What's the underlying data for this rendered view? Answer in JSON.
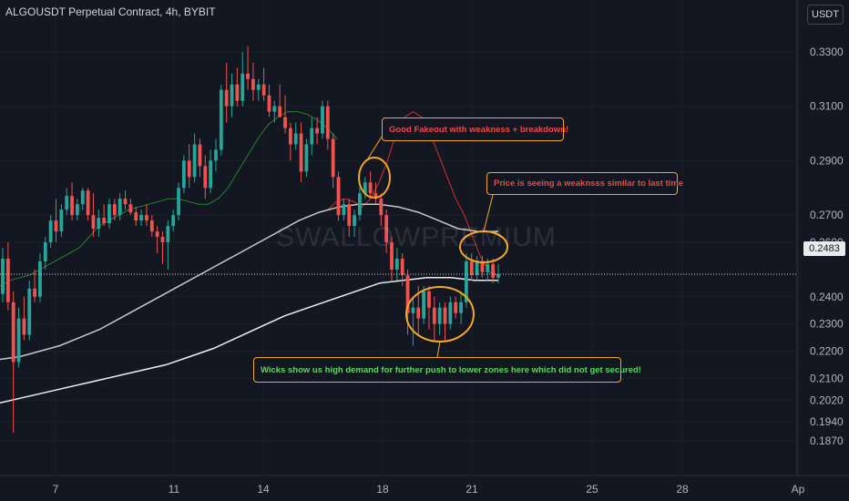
{
  "header": {
    "title": "ALGOUSDT Perpetual Contract, 4h, BYBIT",
    "currency_button": "USDT"
  },
  "watermark": "SWALLOWPREMIUM",
  "last_price_label": "0.2483",
  "annotations": {
    "fakeout": "Good Fakeout with weakness + breakdown!",
    "weakness": "Price is seeing a weaknsss similar to last time",
    "wicks": "Wicks show us high demand for further push to lower zones here which did not get secured!"
  },
  "colors": {
    "background": "#131722",
    "bull": "#26a69a",
    "bear": "#ef5350",
    "annotation_border": "#f5a623",
    "ma_short": "#d32f2f",
    "ma_green": "#2e7d32"
  },
  "chart_data": {
    "type": "candlestick",
    "symbol": "ALGOUSDT",
    "interval": "4h",
    "exchange": "BYBIT",
    "ylim": [
      0.18,
      0.339
    ],
    "y_ticks": [
      "0.3300",
      "0.3100",
      "0.2900",
      "0.2700",
      "0.2600",
      "0.2400",
      "0.2300",
      "0.2200",
      "0.2100",
      "0.2020",
      "0.1940",
      "0.1870"
    ],
    "x_ticks": [
      "7",
      "11",
      "14",
      "18",
      "21",
      "25",
      "28",
      "Ap"
    ],
    "last_price": 0.2483,
    "candles": [
      {
        "o": 0.241,
        "h": 0.258,
        "l": 0.238,
        "c": 0.254
      },
      {
        "o": 0.254,
        "h": 0.26,
        "l": 0.235,
        "c": 0.238
      },
      {
        "o": 0.238,
        "h": 0.242,
        "l": 0.19,
        "c": 0.216
      },
      {
        "o": 0.216,
        "h": 0.236,
        "l": 0.214,
        "c": 0.232
      },
      {
        "o": 0.232,
        "h": 0.24,
        "l": 0.224,
        "c": 0.226
      },
      {
        "o": 0.226,
        "h": 0.246,
        "l": 0.224,
        "c": 0.243
      },
      {
        "o": 0.243,
        "h": 0.25,
        "l": 0.238,
        "c": 0.24
      },
      {
        "o": 0.24,
        "h": 0.256,
        "l": 0.238,
        "c": 0.253
      },
      {
        "o": 0.253,
        "h": 0.262,
        "l": 0.25,
        "c": 0.26
      },
      {
        "o": 0.26,
        "h": 0.27,
        "l": 0.258,
        "c": 0.268
      },
      {
        "o": 0.268,
        "h": 0.276,
        "l": 0.26,
        "c": 0.264
      },
      {
        "o": 0.264,
        "h": 0.274,
        "l": 0.262,
        "c": 0.272
      },
      {
        "o": 0.272,
        "h": 0.28,
        "l": 0.27,
        "c": 0.277
      },
      {
        "o": 0.277,
        "h": 0.282,
        "l": 0.268,
        "c": 0.27
      },
      {
        "o": 0.27,
        "h": 0.276,
        "l": 0.268,
        "c": 0.274
      },
      {
        "o": 0.274,
        "h": 0.28,
        "l": 0.272,
        "c": 0.279
      },
      {
        "o": 0.279,
        "h": 0.28,
        "l": 0.268,
        "c": 0.27
      },
      {
        "o": 0.27,
        "h": 0.278,
        "l": 0.262,
        "c": 0.265
      },
      {
        "o": 0.265,
        "h": 0.272,
        "l": 0.262,
        "c": 0.269
      },
      {
        "o": 0.269,
        "h": 0.274,
        "l": 0.266,
        "c": 0.267
      },
      {
        "o": 0.267,
        "h": 0.276,
        "l": 0.265,
        "c": 0.274
      },
      {
        "o": 0.274,
        "h": 0.276,
        "l": 0.268,
        "c": 0.27
      },
      {
        "o": 0.27,
        "h": 0.278,
        "l": 0.268,
        "c": 0.276
      },
      {
        "o": 0.276,
        "h": 0.279,
        "l": 0.272,
        "c": 0.274
      },
      {
        "o": 0.274,
        "h": 0.276,
        "l": 0.27,
        "c": 0.271
      },
      {
        "o": 0.271,
        "h": 0.273,
        "l": 0.266,
        "c": 0.268
      },
      {
        "o": 0.268,
        "h": 0.272,
        "l": 0.266,
        "c": 0.27
      },
      {
        "o": 0.27,
        "h": 0.274,
        "l": 0.266,
        "c": 0.268
      },
      {
        "o": 0.268,
        "h": 0.27,
        "l": 0.262,
        "c": 0.264
      },
      {
        "o": 0.264,
        "h": 0.266,
        "l": 0.256,
        "c": 0.262
      },
      {
        "o": 0.262,
        "h": 0.264,
        "l": 0.252,
        "c": 0.26
      },
      {
        "o": 0.26,
        "h": 0.268,
        "l": 0.25,
        "c": 0.266
      },
      {
        "o": 0.266,
        "h": 0.272,
        "l": 0.264,
        "c": 0.27
      },
      {
        "o": 0.27,
        "h": 0.282,
        "l": 0.268,
        "c": 0.28
      },
      {
        "o": 0.28,
        "h": 0.292,
        "l": 0.278,
        "c": 0.29
      },
      {
        "o": 0.29,
        "h": 0.296,
        "l": 0.28,
        "c": 0.284
      },
      {
        "o": 0.284,
        "h": 0.3,
        "l": 0.282,
        "c": 0.296
      },
      {
        "o": 0.296,
        "h": 0.298,
        "l": 0.284,
        "c": 0.288
      },
      {
        "o": 0.288,
        "h": 0.292,
        "l": 0.276,
        "c": 0.28
      },
      {
        "o": 0.28,
        "h": 0.294,
        "l": 0.278,
        "c": 0.29
      },
      {
        "o": 0.29,
        "h": 0.298,
        "l": 0.286,
        "c": 0.294
      },
      {
        "o": 0.294,
        "h": 0.318,
        "l": 0.292,
        "c": 0.316
      },
      {
        "o": 0.316,
        "h": 0.326,
        "l": 0.304,
        "c": 0.31
      },
      {
        "o": 0.31,
        "h": 0.322,
        "l": 0.306,
        "c": 0.318
      },
      {
        "o": 0.318,
        "h": 0.324,
        "l": 0.31,
        "c": 0.312
      },
      {
        "o": 0.312,
        "h": 0.33,
        "l": 0.31,
        "c": 0.322
      },
      {
        "o": 0.322,
        "h": 0.332,
        "l": 0.316,
        "c": 0.32
      },
      {
        "o": 0.32,
        "h": 0.326,
        "l": 0.312,
        "c": 0.316
      },
      {
        "o": 0.316,
        "h": 0.32,
        "l": 0.312,
        "c": 0.318
      },
      {
        "o": 0.318,
        "h": 0.324,
        "l": 0.312,
        "c": 0.314
      },
      {
        "o": 0.314,
        "h": 0.318,
        "l": 0.306,
        "c": 0.308
      },
      {
        "o": 0.308,
        "h": 0.312,
        "l": 0.304,
        "c": 0.31
      },
      {
        "o": 0.31,
        "h": 0.318,
        "l": 0.306,
        "c": 0.306
      },
      {
        "o": 0.306,
        "h": 0.314,
        "l": 0.3,
        "c": 0.302
      },
      {
        "o": 0.302,
        "h": 0.304,
        "l": 0.29,
        "c": 0.296
      },
      {
        "o": 0.296,
        "h": 0.304,
        "l": 0.294,
        "c": 0.3
      },
      {
        "o": 0.3,
        "h": 0.304,
        "l": 0.282,
        "c": 0.286
      },
      {
        "o": 0.286,
        "h": 0.298,
        "l": 0.284,
        "c": 0.296
      },
      {
        "o": 0.296,
        "h": 0.306,
        "l": 0.292,
        "c": 0.302
      },
      {
        "o": 0.302,
        "h": 0.306,
        "l": 0.296,
        "c": 0.3
      },
      {
        "o": 0.3,
        "h": 0.312,
        "l": 0.298,
        "c": 0.31
      },
      {
        "o": 0.31,
        "h": 0.312,
        "l": 0.294,
        "c": 0.298
      },
      {
        "o": 0.298,
        "h": 0.3,
        "l": 0.28,
        "c": 0.284
      },
      {
        "o": 0.284,
        "h": 0.286,
        "l": 0.268,
        "c": 0.27
      },
      {
        "o": 0.27,
        "h": 0.276,
        "l": 0.268,
        "c": 0.274
      },
      {
        "o": 0.274,
        "h": 0.276,
        "l": 0.262,
        "c": 0.266
      },
      {
        "o": 0.266,
        "h": 0.272,
        "l": 0.262,
        "c": 0.27
      },
      {
        "o": 0.27,
        "h": 0.28,
        "l": 0.268,
        "c": 0.278
      },
      {
        "o": 0.278,
        "h": 0.284,
        "l": 0.276,
        "c": 0.282
      },
      {
        "o": 0.282,
        "h": 0.286,
        "l": 0.276,
        "c": 0.278
      },
      {
        "o": 0.278,
        "h": 0.282,
        "l": 0.274,
        "c": 0.276
      },
      {
        "o": 0.276,
        "h": 0.278,
        "l": 0.266,
        "c": 0.27
      },
      {
        "o": 0.27,
        "h": 0.272,
        "l": 0.256,
        "c": 0.26
      },
      {
        "o": 0.26,
        "h": 0.262,
        "l": 0.246,
        "c": 0.25
      },
      {
        "o": 0.25,
        "h": 0.258,
        "l": 0.246,
        "c": 0.254
      },
      {
        "o": 0.254,
        "h": 0.256,
        "l": 0.244,
        "c": 0.248
      },
      {
        "o": 0.248,
        "h": 0.25,
        "l": 0.226,
        "c": 0.234
      },
      {
        "o": 0.234,
        "h": 0.24,
        "l": 0.222,
        "c": 0.236
      },
      {
        "o": 0.236,
        "h": 0.244,
        "l": 0.226,
        "c": 0.232
      },
      {
        "o": 0.232,
        "h": 0.244,
        "l": 0.23,
        "c": 0.242
      },
      {
        "o": 0.242,
        "h": 0.244,
        "l": 0.228,
        "c": 0.236
      },
      {
        "o": 0.236,
        "h": 0.24,
        "l": 0.224,
        "c": 0.23
      },
      {
        "o": 0.23,
        "h": 0.238,
        "l": 0.226,
        "c": 0.236
      },
      {
        "o": 0.236,
        "h": 0.238,
        "l": 0.224,
        "c": 0.23
      },
      {
        "o": 0.23,
        "h": 0.24,
        "l": 0.228,
        "c": 0.238
      },
      {
        "o": 0.238,
        "h": 0.24,
        "l": 0.232,
        "c": 0.234
      },
      {
        "o": 0.234,
        "h": 0.242,
        "l": 0.23,
        "c": 0.238
      },
      {
        "o": 0.238,
        "h": 0.256,
        "l": 0.236,
        "c": 0.253
      },
      {
        "o": 0.253,
        "h": 0.256,
        "l": 0.246,
        "c": 0.248
      },
      {
        "o": 0.248,
        "h": 0.255,
        "l": 0.246,
        "c": 0.253
      },
      {
        "o": 0.253,
        "h": 0.255,
        "l": 0.247,
        "c": 0.249
      },
      {
        "o": 0.249,
        "h": 0.254,
        "l": 0.246,
        "c": 0.252
      },
      {
        "o": 0.252,
        "h": 0.254,
        "l": 0.245,
        "c": 0.247
      },
      {
        "o": 0.247,
        "h": 0.252,
        "l": 0.245,
        "c": 0.2483
      }
    ],
    "moving_averages": [
      {
        "color": "#2e7d32",
        "values": [
          0.244,
          0.246,
          0.247,
          0.248,
          0.25,
          0.252,
          0.254,
          0.256,
          0.258,
          0.262,
          0.266,
          0.268,
          0.27,
          0.272,
          0.273,
          0.274,
          0.275,
          0.276,
          0.276,
          0.275,
          0.274,
          0.274,
          0.276,
          0.28,
          0.286,
          0.292,
          0.298,
          0.303,
          0.306,
          0.308,
          0.308,
          0.307,
          0.305,
          0.302,
          0.298
        ]
      },
      {
        "color": "#d32f2f",
        "values": [
          0.272,
          0.275,
          0.276,
          0.275,
          0.273,
          0.276,
          0.282,
          0.29,
          0.3,
          0.306,
          0.308,
          0.306,
          0.3,
          0.292,
          0.284,
          0.276,
          0.27,
          0.262,
          0.254,
          0.249,
          0.248
        ]
      },
      {
        "color": "#c8c8c8",
        "values": [
          0.217,
          0.218,
          0.22,
          0.222,
          0.225,
          0.228,
          0.232,
          0.236,
          0.24,
          0.244,
          0.248,
          0.252,
          0.256,
          0.26,
          0.264,
          0.268,
          0.271,
          0.273,
          0.274,
          0.274,
          0.273,
          0.271,
          0.268,
          0.265,
          0.264,
          0.264
        ]
      },
      {
        "color": "#f0f0f0",
        "values": [
          0.201,
          0.203,
          0.205,
          0.207,
          0.209,
          0.211,
          0.213,
          0.215,
          0.218,
          0.221,
          0.225,
          0.229,
          0.233,
          0.236,
          0.239,
          0.242,
          0.245,
          0.246,
          0.247,
          0.247,
          0.246,
          0.246
        ]
      }
    ]
  }
}
